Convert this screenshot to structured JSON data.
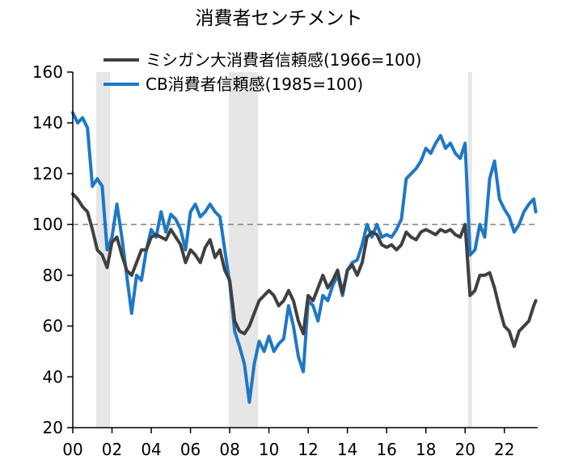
{
  "chart_data": {
    "type": "line",
    "title": "消費者センチメント",
    "xlim": [
      2000,
      2023.7
    ],
    "ylim": [
      20,
      160
    ],
    "x_ticks": [
      2000,
      2002,
      2004,
      2006,
      2008,
      2010,
      2012,
      2014,
      2016,
      2018,
      2020,
      2022
    ],
    "x_tick_labels": [
      "00",
      "02",
      "04",
      "06",
      "08",
      "10",
      "12",
      "14",
      "16",
      "18",
      "20",
      "22"
    ],
    "y_ticks": [
      20,
      40,
      60,
      80,
      100,
      120,
      140,
      160
    ],
    "y_tick_labels": [
      "20",
      "40",
      "60",
      "80",
      "100",
      "120",
      "140",
      "160"
    ],
    "grid": false,
    "legend_position": "top-center",
    "reference_line": {
      "y": 100,
      "style": "dashed",
      "color": "#8c8c8c"
    },
    "recessions": [
      {
        "start": 2001.2,
        "end": 2001.9
      },
      {
        "start": 2007.95,
        "end": 2009.45
      },
      {
        "start": 2020.15,
        "end": 2020.35
      }
    ],
    "recession_color": "#e6e6e6",
    "series": [
      {
        "name": "ミシガン大消費者信頼感(1966=100)",
        "color": "#404040",
        "x": [
          2000.0,
          2000.25,
          2000.5,
          2000.75,
          2001.0,
          2001.25,
          2001.5,
          2001.75,
          2002.0,
          2002.25,
          2002.5,
          2002.75,
          2003.0,
          2003.25,
          2003.5,
          2003.75,
          2004.0,
          2004.25,
          2004.5,
          2004.75,
          2005.0,
          2005.25,
          2005.5,
          2005.75,
          2006.0,
          2006.25,
          2006.5,
          2006.75,
          2007.0,
          2007.25,
          2007.5,
          2007.75,
          2008.0,
          2008.25,
          2008.5,
          2008.75,
          2009.0,
          2009.25,
          2009.5,
          2009.75,
          2010.0,
          2010.25,
          2010.5,
          2010.75,
          2011.0,
          2011.25,
          2011.5,
          2011.75,
          2012.0,
          2012.25,
          2012.5,
          2012.75,
          2013.0,
          2013.25,
          2013.5,
          2013.75,
          2014.0,
          2014.25,
          2014.5,
          2014.75,
          2015.0,
          2015.25,
          2015.5,
          2015.75,
          2016.0,
          2016.25,
          2016.5,
          2016.75,
          2017.0,
          2017.25,
          2017.5,
          2017.75,
          2018.0,
          2018.25,
          2018.5,
          2018.75,
          2019.0,
          2019.25,
          2019.5,
          2019.75,
          2020.0,
          2020.25,
          2020.5,
          2020.75,
          2021.0,
          2021.25,
          2021.5,
          2021.75,
          2022.0,
          2022.25,
          2022.5,
          2022.75,
          2023.0,
          2023.25,
          2023.5,
          2023.6
        ],
        "values": [
          112,
          110,
          107,
          105,
          98,
          90,
          88,
          83,
          93,
          95,
          88,
          82,
          80,
          85,
          90,
          90,
          95,
          96,
          95,
          94,
          98,
          95,
          92,
          85,
          90,
          88,
          85,
          91,
          94,
          87,
          90,
          82,
          78,
          62,
          58,
          57,
          60,
          65,
          70,
          72,
          74,
          72,
          68,
          70,
          74,
          70,
          62,
          57,
          72,
          70,
          75,
          80,
          75,
          78,
          82,
          73,
          82,
          84,
          80,
          85,
          95,
          97,
          96,
          92,
          91,
          92,
          90,
          92,
          97,
          95,
          94,
          97,
          98,
          97,
          96,
          98,
          97,
          98,
          96,
          95,
          100,
          72,
          74,
          80,
          80,
          81,
          75,
          67,
          60,
          58,
          52,
          58,
          60,
          62,
          68,
          70
        ]
      },
      {
        "name": "CB消費者信頼感(1985=100)",
        "color": "#1f77c6",
        "x": [
          2000.0,
          2000.25,
          2000.5,
          2000.75,
          2001.0,
          2001.25,
          2001.5,
          2001.75,
          2002.0,
          2002.25,
          2002.5,
          2002.75,
          2003.0,
          2003.25,
          2003.5,
          2003.75,
          2004.0,
          2004.25,
          2004.5,
          2004.75,
          2005.0,
          2005.25,
          2005.5,
          2005.75,
          2006.0,
          2006.25,
          2006.5,
          2006.75,
          2007.0,
          2007.25,
          2007.5,
          2007.75,
          2008.0,
          2008.25,
          2008.5,
          2008.75,
          2009.0,
          2009.25,
          2009.5,
          2009.75,
          2010.0,
          2010.25,
          2010.5,
          2010.75,
          2011.0,
          2011.25,
          2011.5,
          2011.75,
          2012.0,
          2012.25,
          2012.5,
          2012.75,
          2013.0,
          2013.25,
          2013.5,
          2013.75,
          2014.0,
          2014.25,
          2014.5,
          2014.75,
          2015.0,
          2015.25,
          2015.5,
          2015.75,
          2016.0,
          2016.25,
          2016.5,
          2016.75,
          2017.0,
          2017.25,
          2017.5,
          2017.75,
          2018.0,
          2018.25,
          2018.5,
          2018.75,
          2019.0,
          2019.25,
          2019.5,
          2019.75,
          2020.0,
          2020.25,
          2020.5,
          2020.75,
          2021.0,
          2021.25,
          2021.5,
          2021.75,
          2022.0,
          2022.25,
          2022.5,
          2022.75,
          2023.0,
          2023.25,
          2023.5,
          2023.6
        ],
        "values": [
          144,
          140,
          142,
          138,
          115,
          118,
          115,
          90,
          95,
          108,
          95,
          80,
          65,
          80,
          78,
          90,
          98,
          95,
          105,
          97,
          104,
          102,
          98,
          90,
          105,
          108,
          103,
          105,
          108,
          105,
          103,
          90,
          77,
          58,
          52,
          45,
          30,
          45,
          54,
          50,
          56,
          50,
          53,
          55,
          68,
          60,
          48,
          42,
          70,
          68,
          62,
          72,
          70,
          76,
          80,
          72,
          82,
          85,
          86,
          92,
          100,
          95,
          100,
          95,
          96,
          95,
          98,
          102,
          118,
          120,
          122,
          125,
          130,
          128,
          132,
          135,
          130,
          132,
          128,
          126,
          132,
          88,
          90,
          100,
          95,
          118,
          125,
          110,
          106,
          103,
          97,
          100,
          105,
          108,
          110,
          105
        ]
      }
    ]
  }
}
